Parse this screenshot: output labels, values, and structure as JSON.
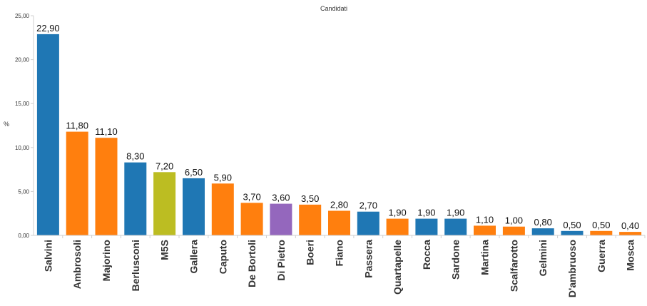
{
  "chart_data": {
    "type": "bar",
    "title": "Candidati",
    "ylabel": "%",
    "xlabel": "",
    "ylim": [
      0,
      25
    ],
    "yticks": [
      "0,00",
      "5,00",
      "10,00",
      "15,00",
      "20,00",
      "25,00"
    ],
    "grid": false,
    "categories": [
      "Salvini",
      "Ambrosoli",
      "Majorino",
      "Berlusconi",
      "M5S",
      "Gallera",
      "Caputo",
      "De Bortoli",
      "Di Pietro",
      "Boeri",
      "Fiano",
      "Passera",
      "Quartapelle",
      "Rocca",
      "Sardone",
      "Martina",
      "Scalfarotto",
      "Gelmini",
      "D'ambruoso",
      "Guerra",
      "Mosca"
    ],
    "values": [
      22.9,
      11.8,
      11.1,
      8.3,
      7.2,
      6.5,
      5.9,
      3.7,
      3.6,
      3.5,
      2.8,
      2.7,
      1.9,
      1.9,
      1.9,
      1.1,
      1.0,
      0.8,
      0.5,
      0.5,
      0.4
    ],
    "value_labels": [
      "22,90",
      "11,80",
      "11,10",
      "8,30",
      "7,20",
      "6,50",
      "5,90",
      "3,70",
      "3,60",
      "3,50",
      "2,80",
      "2,70",
      "1,90",
      "1,90",
      "1,90",
      "1,10",
      "1,00",
      "0,80",
      "0,50",
      "0,50",
      "0,40"
    ],
    "colors": [
      "#1f77b4",
      "#ff7f0e",
      "#ff7f0e",
      "#1f77b4",
      "#bcbd22",
      "#1f77b4",
      "#ff7f0e",
      "#ff7f0e",
      "#9467bd",
      "#ff7f0e",
      "#ff7f0e",
      "#1f77b4",
      "#ff7f0e",
      "#1f77b4",
      "#1f77b4",
      "#ff7f0e",
      "#ff7f0e",
      "#1f77b4",
      "#1f77b4",
      "#ff7f0e",
      "#ff7f0e"
    ]
  }
}
